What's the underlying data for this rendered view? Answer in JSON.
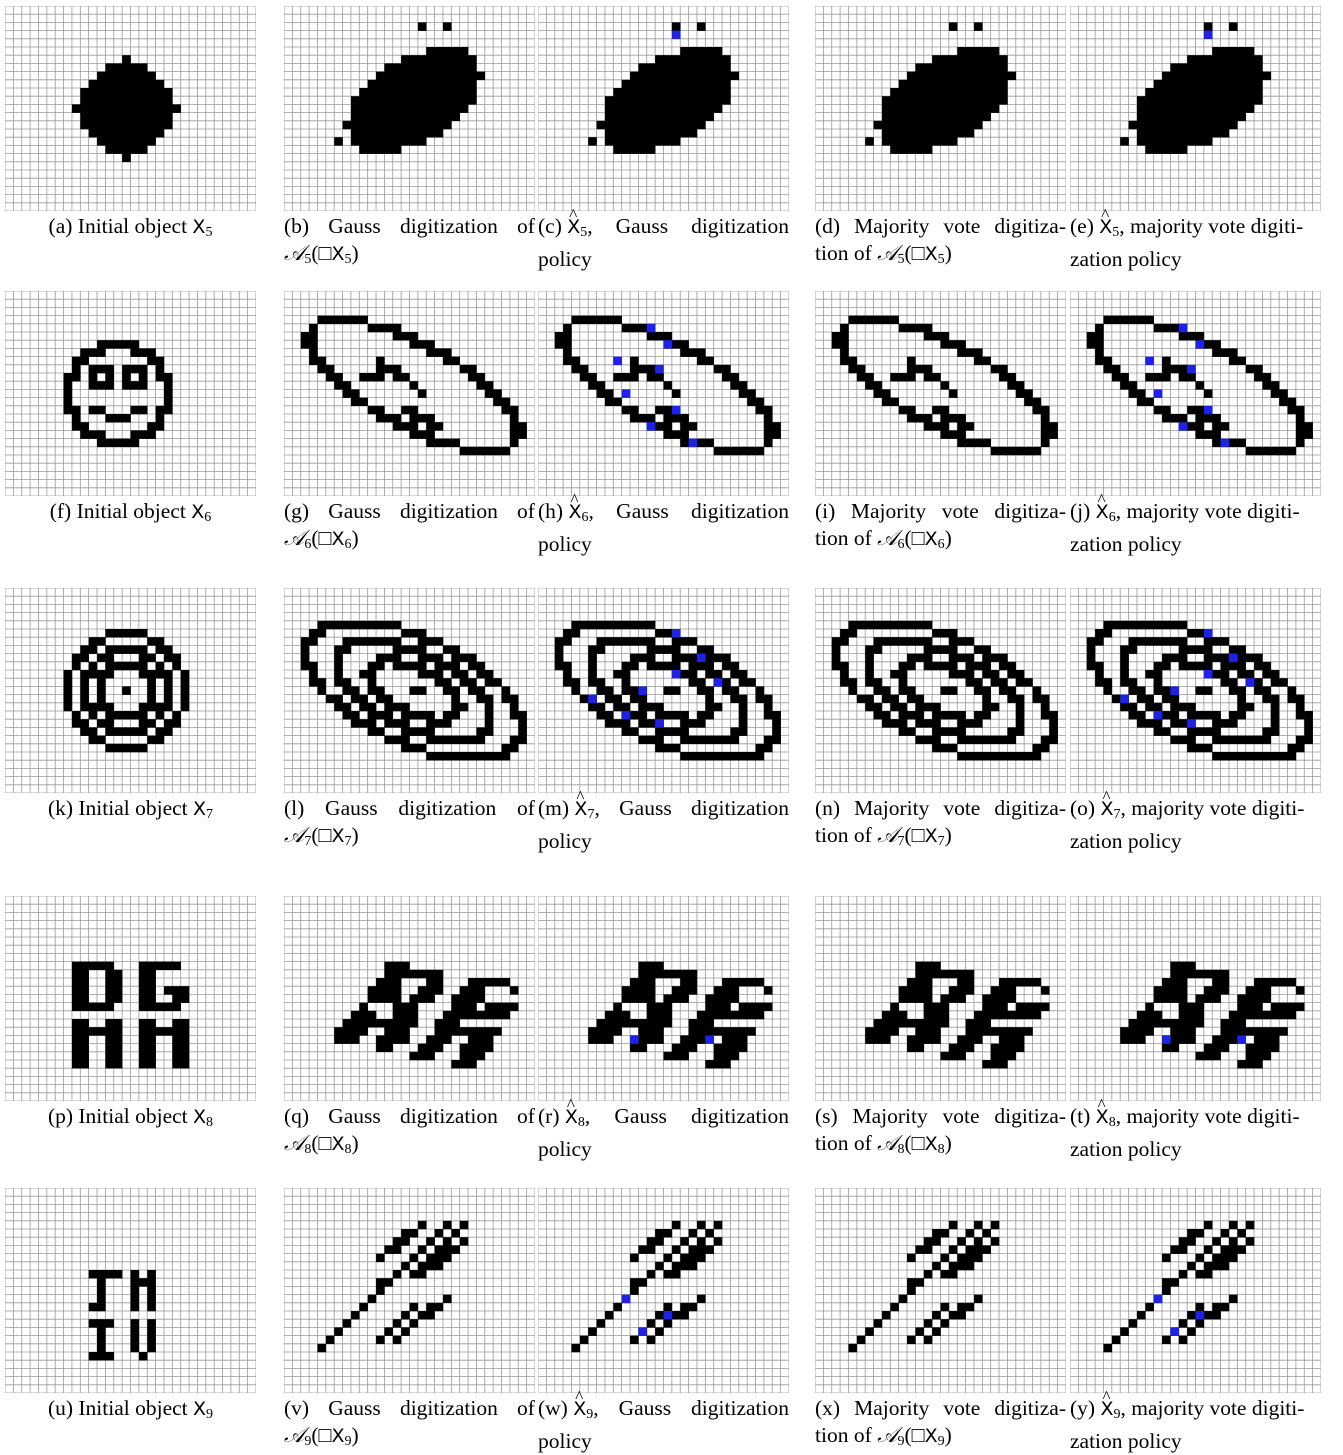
{
  "colors": {
    "grid": "#9a9a9a",
    "object": "#000000",
    "modified": "#1e22e6"
  },
  "figure": {
    "rows": [
      {
        "index": 5,
        "object_shape": "blob",
        "captions": [
          {
            "letter": "(a)",
            "text": "Initial object"
          },
          {
            "letter": "(b)",
            "text": "Gauss digitization of"
          },
          {
            "letter": "(c)",
            "text": ", Gauss digitization policy"
          },
          {
            "letter": "(d)",
            "text": "Majority vote digitiza- tion of"
          },
          {
            "letter": "(e)",
            "text": ", majority vote digiti- zation policy"
          }
        ]
      },
      {
        "index": 6,
        "object_shape": "smiley",
        "captions": [
          {
            "letter": "(f)",
            "text": "Initial object"
          },
          {
            "letter": "(g)",
            "text": "Gauss digitization of"
          },
          {
            "letter": "(h)",
            "text": ", Gauss digitization policy"
          },
          {
            "letter": "(i)",
            "text": "Majority vote digitiza- tion of"
          },
          {
            "letter": "(j)",
            "text": ", majority vote digiti- zation policy"
          }
        ]
      },
      {
        "index": 7,
        "object_shape": "concentric rings",
        "captions": [
          {
            "letter": "(k)",
            "text": "Initial object"
          },
          {
            "letter": "(l)",
            "text": "Gauss digitization of"
          },
          {
            "letter": "(m)",
            "text": ", Gauss digitization policy"
          },
          {
            "letter": "(n)",
            "text": "Majority vote digitiza- tion of"
          },
          {
            "letter": "(o)",
            "text": ", majority vote digiti- zation policy"
          }
        ]
      },
      {
        "index": 8,
        "object_shape": "letters DG MM",
        "captions": [
          {
            "letter": "(p)",
            "text": "Initial object"
          },
          {
            "letter": "(q)",
            "text": "Gauss digitization of"
          },
          {
            "letter": "(r)",
            "text": ", Gauss digitization policy"
          },
          {
            "letter": "(s)",
            "text": "Majority vote digitiza- tion of"
          },
          {
            "letter": "(t)",
            "text": ", majority vote digiti- zation policy"
          }
        ]
      },
      {
        "index": 9,
        "object_shape": "letters JM IV",
        "captions": [
          {
            "letter": "(u)",
            "text": "Initial object"
          },
          {
            "letter": "(v)",
            "text": "Gauss digitization of"
          },
          {
            "letter": "(w)",
            "text": ", Gauss digitization policy"
          },
          {
            "letter": "(x)",
            "text": "Majority vote digitiza- tion of"
          },
          {
            "letter": "(y)",
            "text": ", majority vote digiti- zation policy"
          }
        ]
      }
    ]
  }
}
